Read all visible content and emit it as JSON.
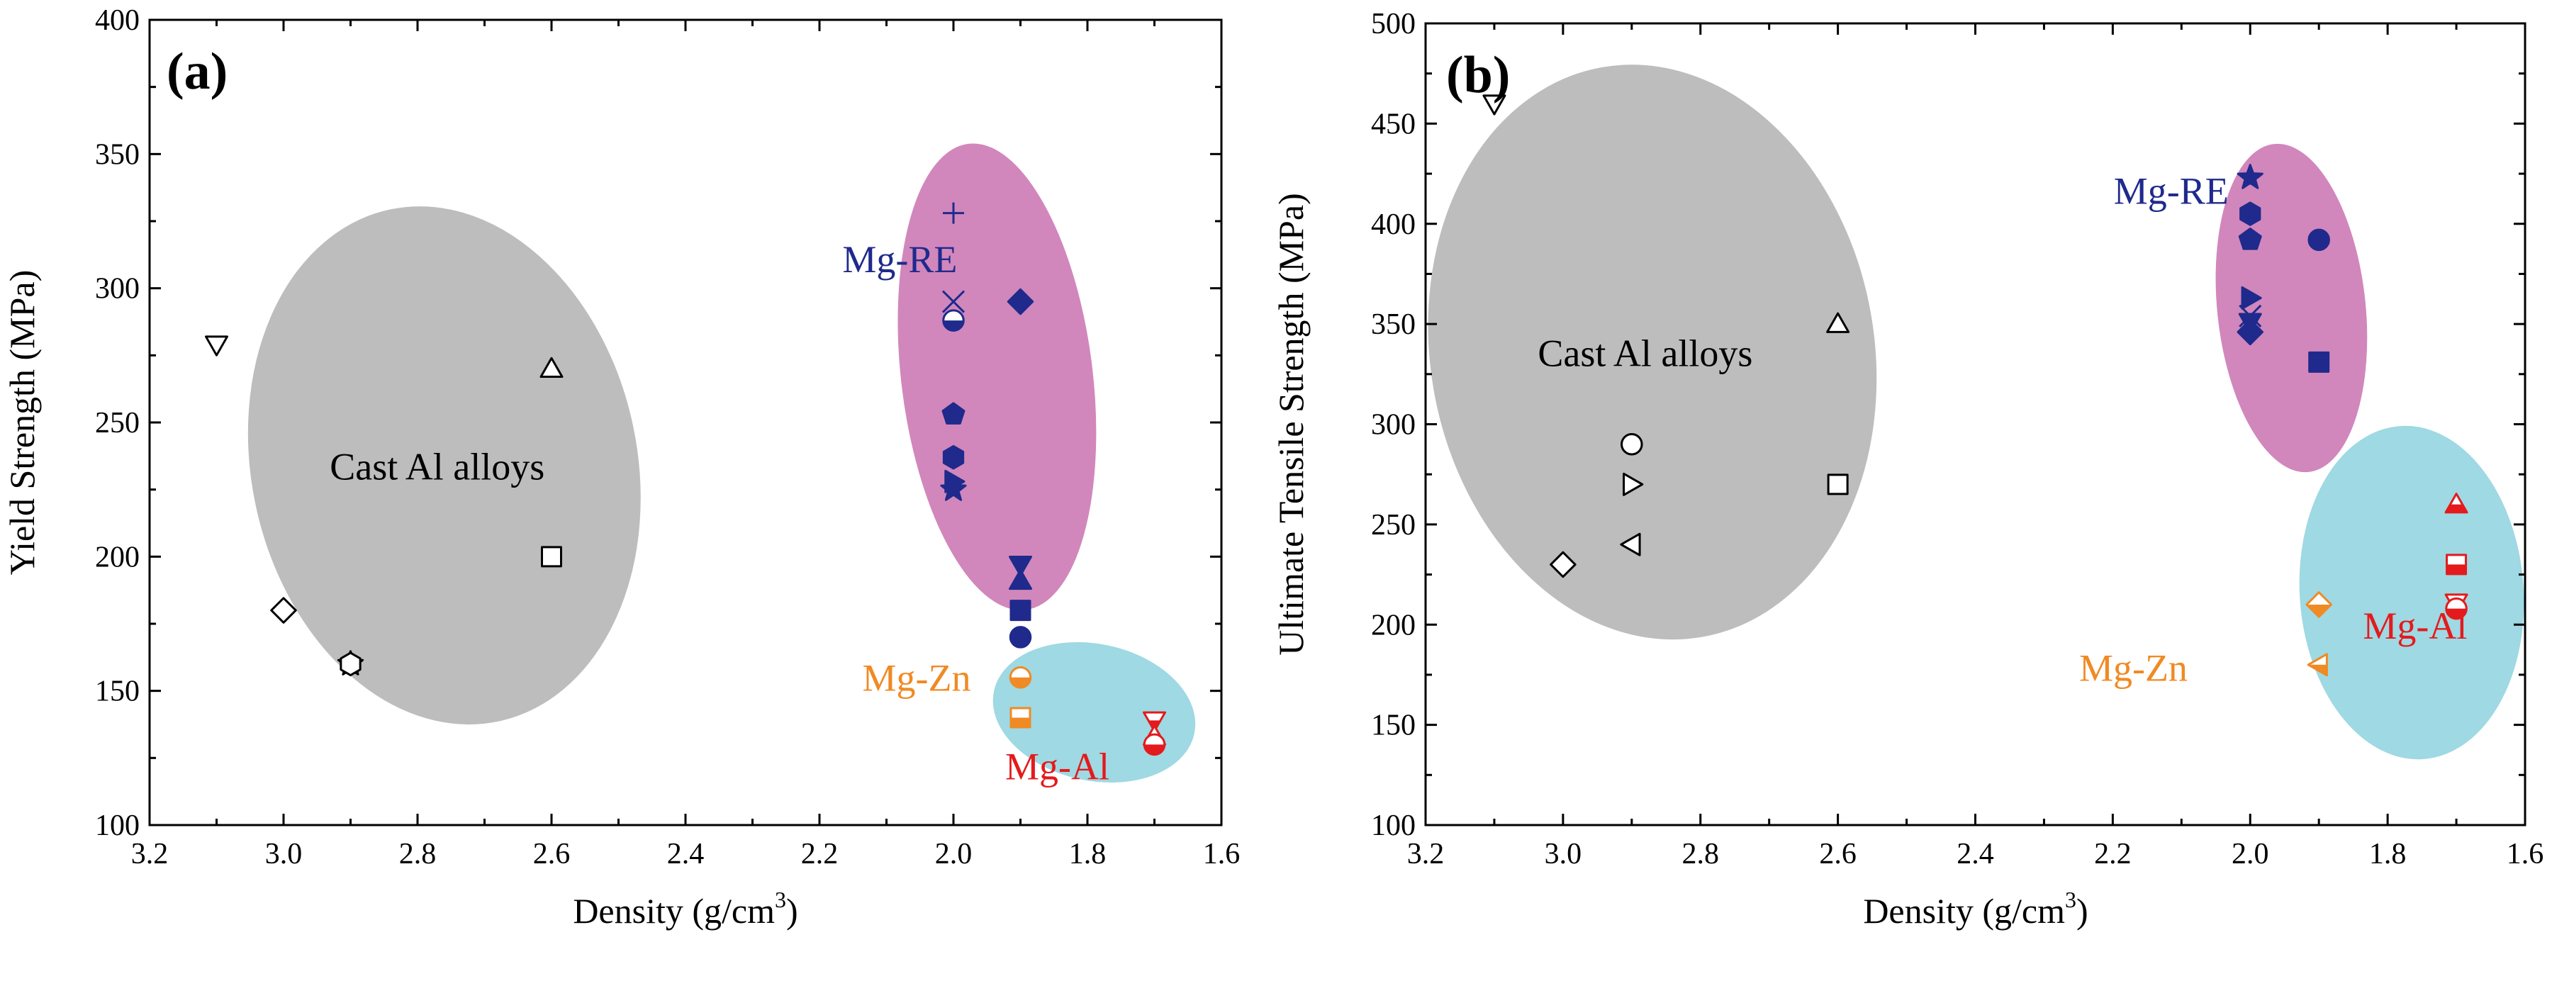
{
  "figure": {
    "panels": [
      {
        "id": "a",
        "panel_label": "(a)",
        "xlabel_main": "Density (g/cm",
        "xlabel_sup": "3",
        "xlabel_end": ")",
        "ylabel": "Yield Strength (MPa)",
        "xticks": [
          "3.2",
          "3.0",
          "2.8",
          "2.6",
          "2.4",
          "2.2",
          "2.0",
          "1.8",
          "1.6"
        ],
        "yticks": [
          "100",
          "150",
          "200",
          "250",
          "300",
          "350",
          "400"
        ]
      },
      {
        "id": "b",
        "panel_label": "(b)",
        "xlabel_main": "Density (g/cm",
        "xlabel_sup": "3",
        "xlabel_end": ")",
        "ylabel": "Ultimate Tensile Strength (MPa)",
        "xticks": [
          "3.2",
          "3.0",
          "2.8",
          "2.6",
          "2.4",
          "2.2",
          "2.0",
          "1.8",
          "1.6"
        ],
        "yticks": [
          "100",
          "150",
          "200",
          "250",
          "300",
          "350",
          "400",
          "450",
          "500"
        ]
      }
    ]
  },
  "colors": {
    "mg_re": "#1f2a8c",
    "mg_zn": "#f08a24",
    "mg_al": "#e41a1c",
    "cast_al_region": "#bdbdbd",
    "mg_re_region": "#d187bc",
    "mg_al_zn_region": "#9fd9e3"
  },
  "chart_data": [
    {
      "type": "scatter",
      "panel": "a",
      "xlabel": "Density (g/cm3)",
      "ylabel": "Yield Strength (MPa)",
      "xlim": [
        3.2,
        1.6
      ],
      "ylim": [
        100,
        400
      ],
      "x_reversed": true,
      "regions": [
        {
          "label": "Cast Al alloys",
          "fill": "#bdbdbd",
          "label_color": "#000000",
          "cx": 2.76,
          "cy": 234,
          "rx": 0.29,
          "ry": 98,
          "angle_deg": -12
        },
        {
          "label": "Mg-RE",
          "fill": "#d187bc",
          "label_color": "#1f2a8c",
          "cx": 1.935,
          "cy": 267,
          "rx": 0.145,
          "ry": 88,
          "angle_deg": -7
        },
        {
          "label": "Mg-Zn / Mg-Al",
          "fill": "#9fd9e3",
          "label_color": null,
          "cx": 1.79,
          "cy": 142,
          "rx": 0.155,
          "ry": 26,
          "angle_deg": 12
        }
      ],
      "annotations": [
        {
          "text": "Mg-RE",
          "x": 2.08,
          "y": 306,
          "color": "#1f2a8c"
        },
        {
          "text": "Mg-Zn",
          "x": 2.055,
          "y": 150,
          "color": "#f08a24"
        },
        {
          "text": "Mg-Al",
          "x": 1.845,
          "y": 117,
          "color": "#e41a1c"
        }
      ],
      "series": [
        {
          "name": "Cast Al alloys",
          "color": "#000000",
          "points": [
            {
              "x": 3.1,
              "y": 279,
              "marker": "tri-down",
              "fill": "open"
            },
            {
              "x": 2.6,
              "y": 270,
              "marker": "tri-up",
              "fill": "open"
            },
            {
              "x": 2.6,
              "y": 200,
              "marker": "square",
              "fill": "open"
            },
            {
              "x": 3.0,
              "y": 180,
              "marker": "diamond",
              "fill": "open"
            },
            {
              "x": 2.9,
              "y": 160,
              "marker": "star",
              "fill": "open"
            },
            {
              "x": 2.9,
              "y": 160,
              "marker": "hexagon",
              "fill": "open"
            }
          ]
        },
        {
          "name": "Mg-RE",
          "color": "#1f2a8c",
          "points": [
            {
              "x": 2.0,
              "y": 328,
              "marker": "plus",
              "fill": "solid"
            },
            {
              "x": 2.0,
              "y": 295,
              "marker": "cross",
              "fill": "solid"
            },
            {
              "x": 2.0,
              "y": 288,
              "marker": "circle",
              "fill": "half"
            },
            {
              "x": 1.9,
              "y": 295,
              "marker": "diamond",
              "fill": "solid"
            },
            {
              "x": 2.0,
              "y": 253,
              "marker": "pentagon",
              "fill": "solid"
            },
            {
              "x": 2.0,
              "y": 237,
              "marker": "hexagon",
              "fill": "solid"
            },
            {
              "x": 2.0,
              "y": 228,
              "marker": "tri-right",
              "fill": "solid"
            },
            {
              "x": 2.0,
              "y": 225,
              "marker": "star",
              "fill": "solid"
            },
            {
              "x": 1.9,
              "y": 197,
              "marker": "tri-down",
              "fill": "solid"
            },
            {
              "x": 1.9,
              "y": 191,
              "marker": "tri-up",
              "fill": "solid"
            },
            {
              "x": 1.9,
              "y": 180,
              "marker": "square",
              "fill": "solid"
            },
            {
              "x": 1.9,
              "y": 170,
              "marker": "circle",
              "fill": "solid"
            }
          ]
        },
        {
          "name": "Mg-Zn",
          "color": "#f08a24",
          "points": [
            {
              "x": 1.9,
              "y": 155,
              "marker": "circle",
              "fill": "half"
            },
            {
              "x": 1.9,
              "y": 140,
              "marker": "square",
              "fill": "half"
            }
          ]
        },
        {
          "name": "Mg-Al",
          "color": "#e41a1c",
          "points": [
            {
              "x": 1.7,
              "y": 139,
              "marker": "tri-down",
              "fill": "half"
            },
            {
              "x": 1.7,
              "y": 133,
              "marker": "tri-up",
              "fill": "half"
            },
            {
              "x": 1.7,
              "y": 130,
              "marker": "circle",
              "fill": "half"
            }
          ]
        }
      ]
    },
    {
      "type": "scatter",
      "panel": "b",
      "xlabel": "Density (g/cm3)",
      "ylabel": "Ultimate Tensile Strength (MPa)",
      "xlim": [
        3.2,
        1.6
      ],
      "ylim": [
        100,
        500
      ],
      "x_reversed": true,
      "regions": [
        {
          "label": "Cast Al alloys",
          "fill": "#bdbdbd",
          "label_color": "#000000",
          "cx": 2.87,
          "cy": 336,
          "rx": 0.325,
          "ry": 145,
          "angle_deg": -10
        },
        {
          "label": "Mg-RE",
          "fill": "#d187bc",
          "label_color": "#1f2a8c",
          "cx": 1.94,
          "cy": 358,
          "rx": 0.11,
          "ry": 83,
          "angle_deg": -6
        },
        {
          "label": "Mg-Zn / Mg-Al",
          "fill": "#9fd9e3",
          "label_color": null,
          "cx": 1.765,
          "cy": 216,
          "rx": 0.165,
          "ry": 84,
          "angle_deg": -4
        }
      ],
      "annotations": [
        {
          "text": "Mg-RE",
          "x": 2.115,
          "y": 410,
          "color": "#1f2a8c"
        },
        {
          "text": "Mg-Zn",
          "x": 2.17,
          "y": 172,
          "color": "#f08a24"
        },
        {
          "text": "Mg-Al",
          "x": 1.76,
          "y": 193,
          "color": "#e41a1c"
        }
      ],
      "series": [
        {
          "name": "Cast Al alloys",
          "color": "#000000",
          "points": [
            {
              "x": 3.1,
              "y": 460,
              "marker": "tri-down",
              "fill": "open"
            },
            {
              "x": 2.6,
              "y": 350,
              "marker": "tri-up",
              "fill": "open"
            },
            {
              "x": 2.9,
              "y": 290,
              "marker": "circle",
              "fill": "open"
            },
            {
              "x": 2.9,
              "y": 270,
              "marker": "tri-right",
              "fill": "open"
            },
            {
              "x": 2.6,
              "y": 270,
              "marker": "square",
              "fill": "open"
            },
            {
              "x": 2.9,
              "y": 240,
              "marker": "tri-left",
              "fill": "open"
            },
            {
              "x": 3.0,
              "y": 230,
              "marker": "diamond",
              "fill": "open"
            }
          ]
        },
        {
          "name": "Mg-RE",
          "color": "#1f2a8c",
          "points": [
            {
              "x": 2.0,
              "y": 423,
              "marker": "star",
              "fill": "solid"
            },
            {
              "x": 2.0,
              "y": 405,
              "marker": "hexagon",
              "fill": "solid"
            },
            {
              "x": 2.0,
              "y": 392,
              "marker": "pentagon",
              "fill": "solid"
            },
            {
              "x": 1.9,
              "y": 392,
              "marker": "circle",
              "fill": "solid"
            },
            {
              "x": 2.0,
              "y": 363,
              "marker": "tri-right",
              "fill": "solid"
            },
            {
              "x": 2.0,
              "y": 354,
              "marker": "cross",
              "fill": "solid"
            },
            {
              "x": 2.0,
              "y": 351,
              "marker": "tri-down",
              "fill": "solid"
            },
            {
              "x": 2.0,
              "y": 346,
              "marker": "diamond",
              "fill": "solid"
            },
            {
              "x": 1.9,
              "y": 331,
              "marker": "square",
              "fill": "solid"
            }
          ]
        },
        {
          "name": "Mg-Zn",
          "color": "#f08a24",
          "points": [
            {
              "x": 1.9,
              "y": 210,
              "marker": "diamond",
              "fill": "half"
            },
            {
              "x": 1.9,
              "y": 180,
              "marker": "tri-left",
              "fill": "half"
            }
          ]
        },
        {
          "name": "Mg-Al",
          "color": "#e41a1c",
          "points": [
            {
              "x": 1.7,
              "y": 260,
              "marker": "tri-up",
              "fill": "half"
            },
            {
              "x": 1.7,
              "y": 230,
              "marker": "square",
              "fill": "half"
            },
            {
              "x": 1.7,
              "y": 211,
              "marker": "tri-down",
              "fill": "half"
            },
            {
              "x": 1.7,
              "y": 208,
              "marker": "circle",
              "fill": "half"
            }
          ]
        }
      ]
    }
  ]
}
